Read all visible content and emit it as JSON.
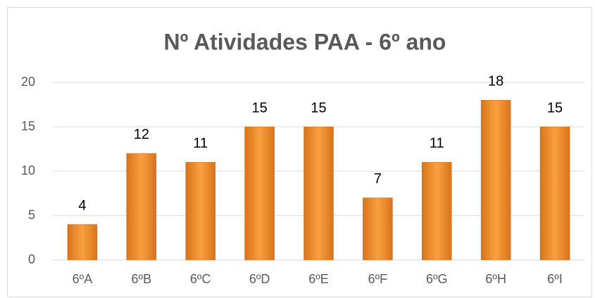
{
  "chart_data": {
    "type": "bar",
    "title": "Nº Atividades PAA - 6º ano",
    "categories": [
      "6ºA",
      "6ºB",
      "6ºC",
      "6ºD",
      "6ºE",
      "6ºF",
      "6ºG",
      "6ºH",
      "6ºI"
    ],
    "values": [
      4,
      12,
      11,
      15,
      15,
      7,
      11,
      18,
      15
    ],
    "color": "#f9a040",
    "ylim": [
      0,
      20
    ],
    "yticks": [
      0,
      5,
      10,
      15,
      20
    ],
    "grid": true
  }
}
